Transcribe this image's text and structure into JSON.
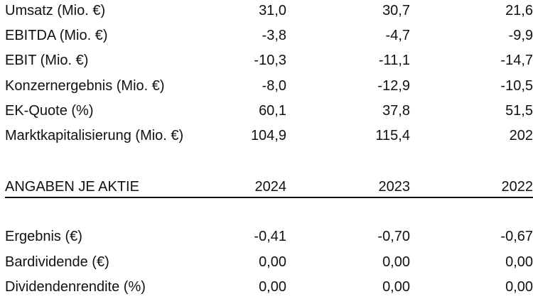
{
  "table": {
    "rows": [
      [
        "Umsatz (Mio. €)",
        "31,0",
        "30,7",
        "21,6"
      ],
      [
        "EBITDA (Mio. €)",
        "-3,8",
        "-4,7",
        "-9,9"
      ],
      [
        "EBIT (Mio. €)",
        "-10,3",
        "-11,1",
        "-14,7"
      ],
      [
        "Konzernergebnis (Mio. €)",
        "-8,0",
        "-12,9",
        "-10,5"
      ],
      [
        "EK-Quote (%)",
        "60,1",
        "37,8",
        "51,5"
      ],
      [
        "Marktkapitalisierung (Mio. €)",
        "104,9",
        "115,4",
        "202"
      ]
    ]
  },
  "share_table": {
    "header": [
      "ANGABEN JE AKTIE",
      "2024",
      "2023",
      "2022"
    ],
    "rows": [
      [
        "Ergebnis (€)",
        "-0,41",
        "-0,70",
        "-0,67"
      ],
      [
        "Bardividende (€)",
        "0,00",
        "0,00",
        "0,00"
      ],
      [
        "Dividendenrendite (%)",
        "0,00",
        "0,00",
        "0,00"
      ]
    ]
  }
}
